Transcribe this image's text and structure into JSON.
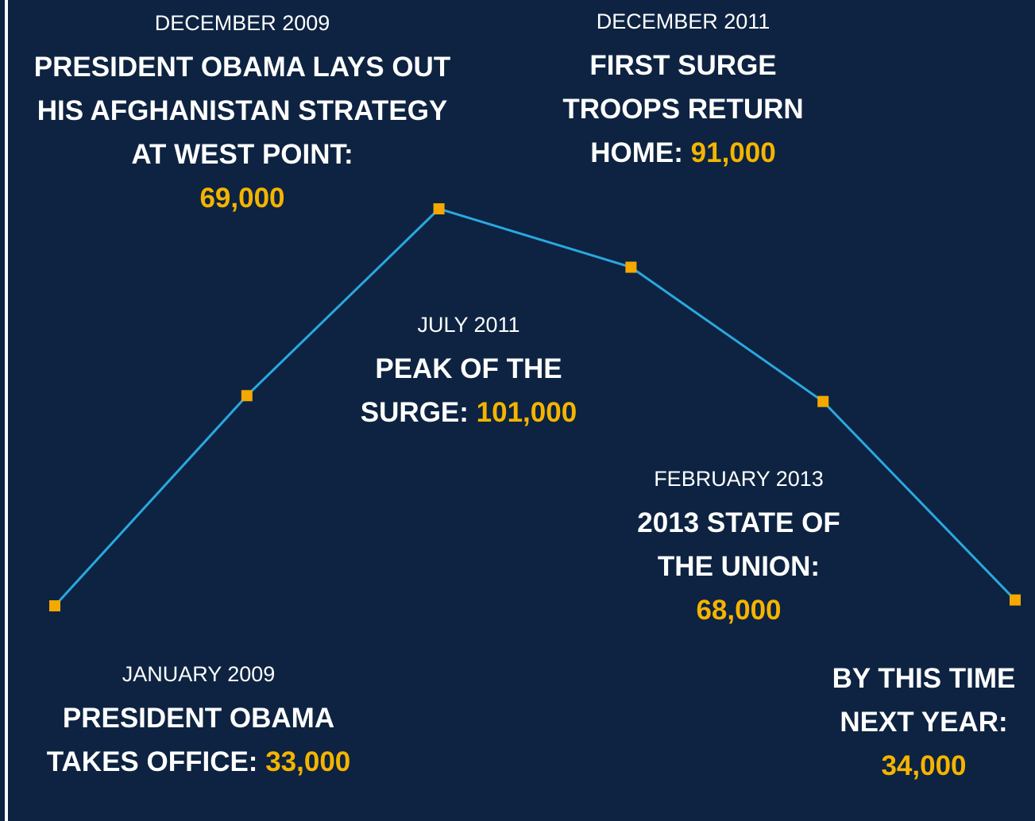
{
  "chart_data": {
    "type": "line",
    "categories": [
      "JANUARY 2009",
      "DECEMBER 2009",
      "JULY 2011",
      "DECEMBER 2011",
      "FEBRUARY 2013",
      null
    ],
    "labels": [
      "PRESIDENT OBAMA TAKES OFFICE:",
      "PRESIDENT OBAMA LAYS OUT HIS AFGHANISTAN STRATEGY AT WEST POINT:",
      "PEAK OF THE SURGE:",
      "FIRST SURGE TROOPS RETURN HOME:",
      "2013 STATE OF THE UNION:",
      "BY THIS TIME NEXT YEAR:"
    ],
    "values": [
      33000,
      69000,
      101000,
      91000,
      68000,
      34000
    ],
    "value_labels": [
      "33,000",
      "69,000",
      "101,000",
      "91,000",
      "68,000",
      "34,000"
    ],
    "ylim": [
      33000,
      101000
    ],
    "color": "#2aa8df",
    "marker_color": "#f5a800"
  }
}
